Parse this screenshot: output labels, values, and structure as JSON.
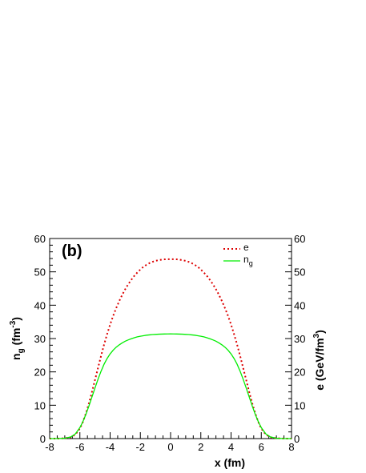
{
  "chart_data": {
    "type": "line",
    "panel_label": "(b)",
    "xlabel": "x (fm)",
    "ylabel_left": {
      "main": "n",
      "sub": "g",
      "unit_prefix": " (fm",
      "sup": "-3",
      "unit_suffix": ")"
    },
    "ylabel_right": {
      "main": "e (GeV/fm",
      "sup": "3",
      "suffix": ")"
    },
    "xlim": [
      -8,
      8
    ],
    "ylim": [
      0,
      60
    ],
    "x_ticks": [
      "-8",
      "-6",
      "-4",
      "-2",
      "0",
      "2",
      "4",
      "6",
      "8"
    ],
    "y_ticks": [
      "0",
      "10",
      "20",
      "30",
      "40",
      "50",
      "60"
    ],
    "legend": {
      "placement": "top-right",
      "entries": [
        {
          "series": 0,
          "main": "e",
          "sub": ""
        },
        {
          "series": 1,
          "main": "n",
          "sub": "g"
        }
      ]
    },
    "series": [
      {
        "key": "e",
        "color": "#dd0000",
        "style": "dotted",
        "x": [
          -8,
          -7.5,
          -7,
          -6.6,
          -6.3,
          -6.0,
          -5.8,
          -5.6,
          -5.4,
          -5.2,
          -5.0,
          -4.8,
          -4.6,
          -4.4,
          -4.2,
          -4.0,
          -3.8,
          -3.6,
          -3.4,
          -3.2,
          -3.0,
          -2.8,
          -2.6,
          -2.4,
          -2.2,
          -2.0,
          -1.8,
          -1.6,
          -1.4,
          -1.2,
          -1.0,
          -0.8,
          -0.6,
          -0.4,
          -0.2,
          0,
          0.2,
          0.4,
          0.6,
          0.8,
          1.0,
          1.2,
          1.4,
          1.6,
          1.8,
          2.0,
          2.2,
          2.4,
          2.6,
          2.8,
          3.0,
          3.2,
          3.4,
          3.6,
          3.8,
          4.0,
          4.2,
          4.4,
          4.6,
          4.8,
          5.0,
          5.2,
          5.4,
          5.6,
          5.8,
          6.0,
          6.3,
          6.6,
          7,
          7.5,
          8
        ],
        "y": [
          0,
          0,
          0.1,
          0.4,
          1.2,
          3.0,
          5.0,
          7.6,
          10.6,
          14.0,
          17.6,
          21.2,
          24.8,
          28.2,
          31.3,
          34.2,
          36.8,
          39.1,
          41.2,
          43.1,
          44.8,
          46.3,
          47.6,
          48.8,
          49.8,
          50.7,
          51.5,
          52.1,
          52.6,
          53.0,
          53.3,
          53.5,
          53.65,
          53.75,
          53.8,
          53.8,
          53.8,
          53.75,
          53.65,
          53.5,
          53.3,
          53.0,
          52.6,
          52.1,
          51.5,
          50.7,
          49.8,
          48.8,
          47.6,
          46.3,
          44.8,
          43.1,
          41.2,
          39.1,
          36.8,
          34.2,
          31.3,
          28.2,
          24.8,
          21.2,
          17.6,
          14.0,
          10.6,
          7.6,
          5.0,
          3.0,
          1.2,
          0.4,
          0.1,
          0,
          0
        ]
      },
      {
        "key": "ng",
        "color": "#00ee00",
        "style": "solid",
        "x": [
          -8,
          -7.5,
          -7,
          -6.6,
          -6.3,
          -6.0,
          -5.8,
          -5.6,
          -5.4,
          -5.2,
          -5.0,
          -4.8,
          -4.6,
          -4.4,
          -4.2,
          -4.0,
          -3.8,
          -3.6,
          -3.4,
          -3.2,
          -3.0,
          -2.8,
          -2.6,
          -2.4,
          -2.2,
          -2.0,
          -1.8,
          -1.6,
          -1.4,
          -1.2,
          -1.0,
          -0.8,
          -0.6,
          -0.4,
          -0.2,
          0,
          0.2,
          0.4,
          0.6,
          0.8,
          1.0,
          1.2,
          1.4,
          1.6,
          1.8,
          2.0,
          2.2,
          2.4,
          2.6,
          2.8,
          3.0,
          3.2,
          3.4,
          3.6,
          3.8,
          4.0,
          4.2,
          4.4,
          4.6,
          4.8,
          5.0,
          5.2,
          5.4,
          5.6,
          5.8,
          6.0,
          6.3,
          6.6,
          7,
          7.5,
          8
        ],
        "y": [
          0,
          0,
          0.1,
          0.5,
          1.4,
          3.3,
          5.1,
          7.3,
          9.8,
          12.5,
          15.2,
          17.8,
          20.2,
          22.3,
          24.0,
          25.4,
          26.5,
          27.4,
          28.1,
          28.7,
          29.2,
          29.6,
          29.95,
          30.25,
          30.5,
          30.7,
          30.85,
          31.0,
          31.1,
          31.2,
          31.25,
          31.3,
          31.33,
          31.36,
          31.38,
          31.4,
          31.38,
          31.36,
          31.33,
          31.3,
          31.25,
          31.2,
          31.1,
          31.0,
          30.85,
          30.7,
          30.5,
          30.25,
          29.95,
          29.6,
          29.2,
          28.7,
          28.1,
          27.4,
          26.5,
          25.4,
          24.0,
          22.3,
          20.2,
          17.8,
          15.2,
          12.5,
          9.8,
          7.3,
          5.1,
          3.3,
          1.4,
          0.5,
          0.1,
          0,
          0
        ]
      }
    ]
  }
}
